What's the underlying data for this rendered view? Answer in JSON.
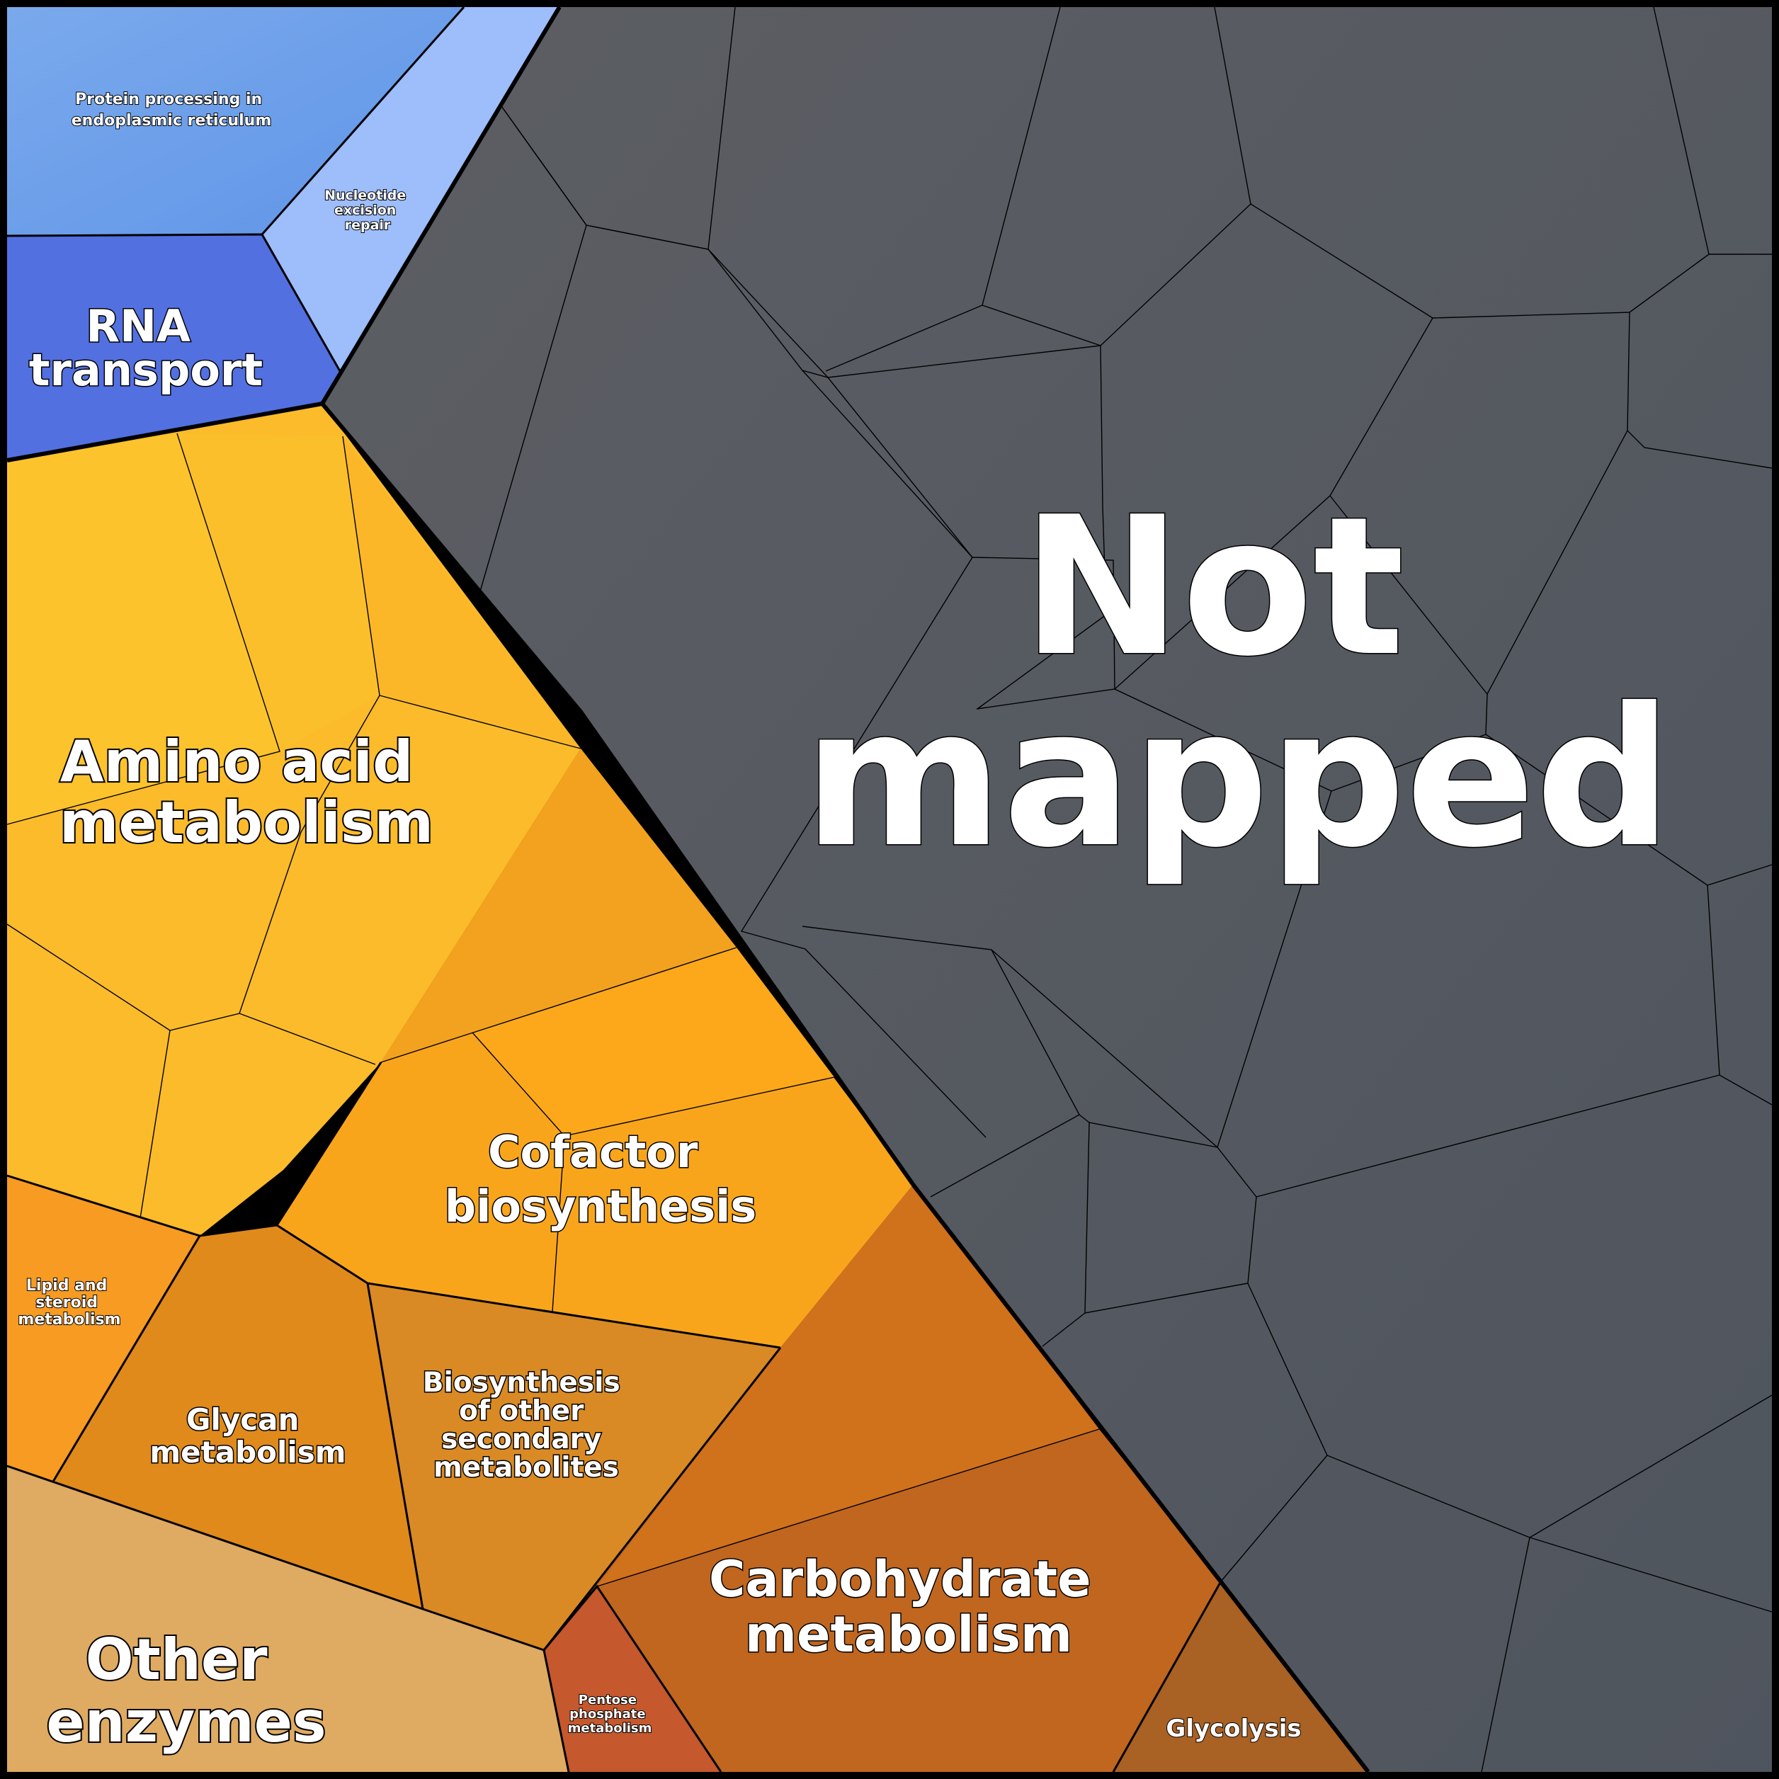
{
  "treemap": {
    "regions": [
      {
        "id": "protein-processing",
        "lines": [
          "Protein processing in",
          "endoplasmic reticulum"
        ],
        "color": "#6a9ee8"
      },
      {
        "id": "nucleotide-excision-repair",
        "lines": [
          "Nucleotide",
          "excision",
          "repair"
        ],
        "color": "#9dbdfb"
      },
      {
        "id": "rna-transport",
        "lines": [
          "RNA",
          "transport"
        ],
        "color": "#5270e0"
      },
      {
        "id": "amino-acid-metabolism",
        "lines": [
          "Amino acid",
          "metabolism"
        ],
        "color": "#fbbb2a"
      },
      {
        "id": "cofactor-biosynthesis",
        "lines": [
          "Cofactor",
          "biosynthesis"
        ],
        "color": "#f9a51c"
      },
      {
        "id": "lipid-steroid-metabolism",
        "lines": [
          "Lipid and",
          "steroid",
          "metabolism"
        ],
        "color": "#f79b22"
      },
      {
        "id": "glycan-metabolism",
        "lines": [
          "Glycan",
          "metabolism"
        ],
        "color": "#e08a1b"
      },
      {
        "id": "biosynthesis-secondary-metabolites",
        "lines": [
          "Biosynthesis",
          "of other",
          "secondary",
          "metabolites"
        ],
        "color": "#d98a24"
      },
      {
        "id": "other-enzymes",
        "lines": [
          "Other",
          "enzymes"
        ],
        "color": "#dfaa61"
      },
      {
        "id": "carbohydrate-metabolism",
        "lines": [
          "Carbohydrate",
          "metabolism"
        ],
        "color": "#c0661f"
      },
      {
        "id": "pentose-phosphate-metabolism",
        "lines": [
          "Pentose",
          "phosphate",
          "metabolism"
        ],
        "color": "#c5582d"
      },
      {
        "id": "glycolysis",
        "lines": [
          "Glycolysis"
        ],
        "color": "#a96124"
      },
      {
        "id": "not-mapped",
        "lines": [
          "Not",
          "mapped"
        ],
        "color": "#575b61"
      }
    ]
  }
}
